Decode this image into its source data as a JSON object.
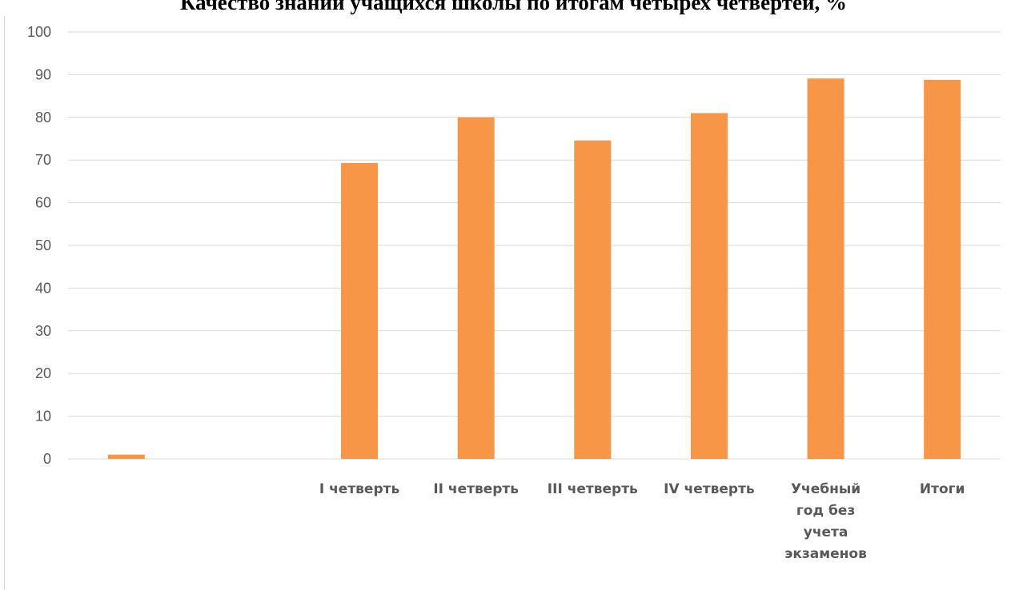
{
  "chart_data": {
    "type": "bar",
    "title": "Качество знаний учащихся школы по итогам четырех четвертей, %",
    "categories": [
      "",
      "",
      "I четверть",
      "II четверть",
      "III четверть",
      "IV четверть",
      "Учебный год без учета экзаменов",
      "Итоги"
    ],
    "category_lines": [
      [],
      [],
      [
        "I четверть"
      ],
      [
        "II четверть"
      ],
      [
        "III четверть"
      ],
      [
        "IV четверть"
      ],
      [
        "Учебный",
        "год без",
        "учета",
        "экзаменов"
      ],
      [
        "Итоги"
      ]
    ],
    "values": [
      1,
      null,
      69.3,
      80,
      74.6,
      81,
      89.1,
      88.8
    ],
    "ylim": [
      0,
      100
    ],
    "yticks": [
      0,
      10,
      20,
      30,
      40,
      50,
      60,
      70,
      80,
      90,
      100
    ],
    "grid": true,
    "legend": "none",
    "bar_color": "#f79646",
    "grid_color": "#d9d9d9",
    "text_color": "#595959"
  }
}
